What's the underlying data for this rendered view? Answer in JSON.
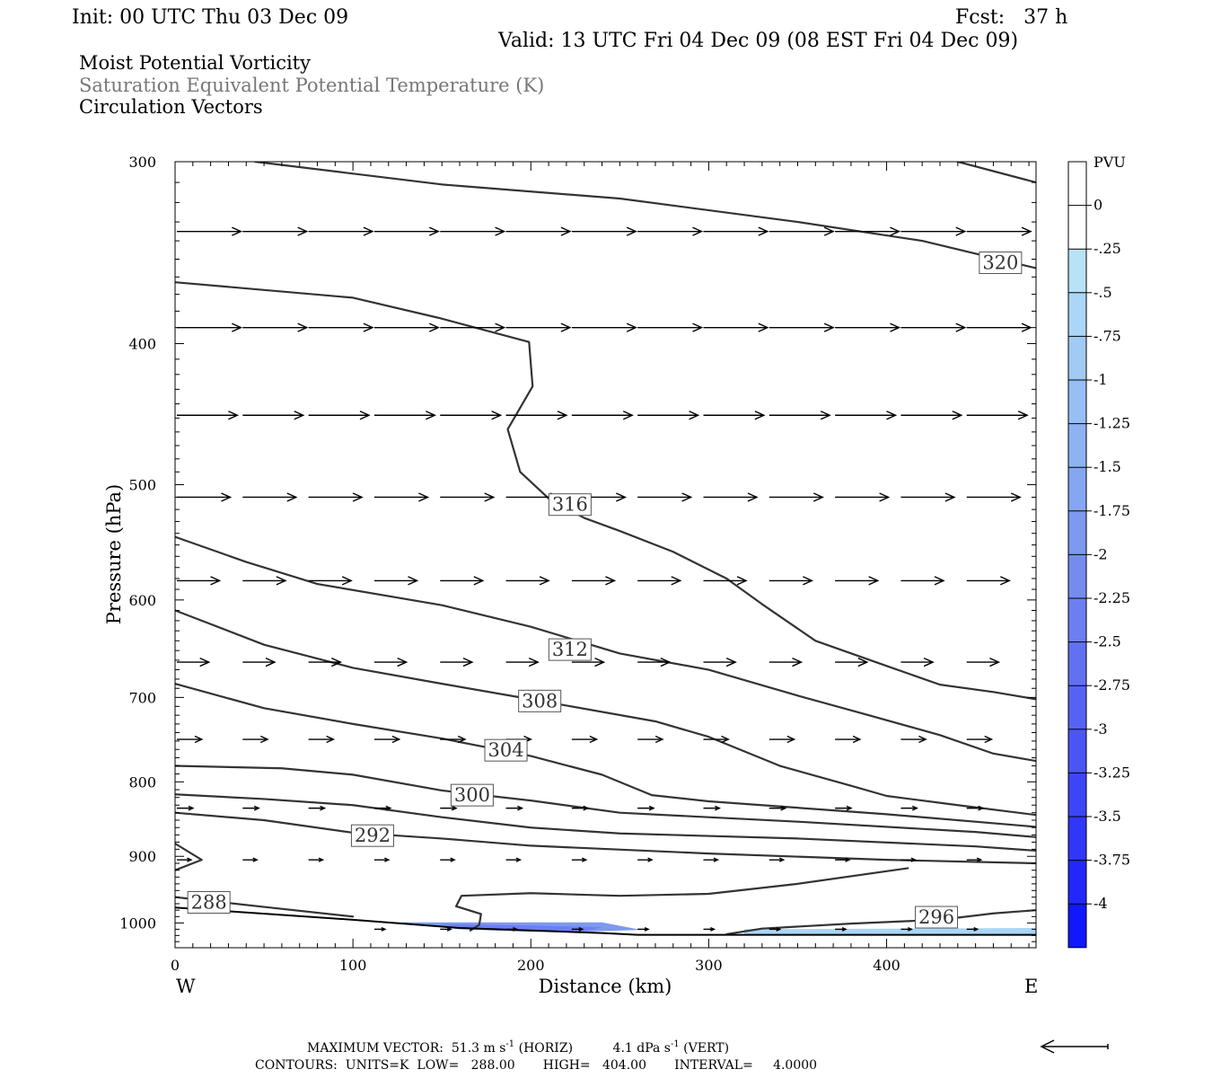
{
  "header": {
    "init": "Init: 00 UTC Thu 03 Dec 09",
    "fcst": "Fcst:   37 h",
    "valid": "Valid: 13 UTC Fri 04 Dec 09 (08 EST Fri 04 Dec 09)",
    "fields": [
      "Moist Potential Vorticity",
      "Saturation Equivalent Potential Temperature (K)",
      "Circulation Vectors"
    ]
  },
  "footer": {
    "line1_prefix": "MAXIMUM VECTOR:  51.3 m s",
    "line1_mid": " (HORIZ)          4.1 dPa s",
    "line1_suffix": " (VERT)",
    "sup": "-1",
    "line2": "CONTOURS:  UNITS=K  LOW=   288.00       HIGH=   404.00       INTERVAL=     4.0000"
  },
  "chart_data": {
    "type": "line",
    "xlabel": "Distance (km)",
    "ylabel": "Pressure (hPa)",
    "xlim": [
      0,
      484
    ],
    "ylim": [
      1040,
      300
    ],
    "y_log": true,
    "x_ticks": [
      0,
      100,
      200,
      300,
      400
    ],
    "y_ticks": [
      300,
      400,
      500,
      600,
      700,
      800,
      900,
      1000
    ],
    "direction_labels": {
      "left": "W",
      "right": "E"
    },
    "colorbar": {
      "unit": "PVU",
      "labels": [
        "0",
        "-.25",
        "-.5",
        "-.75",
        "-1",
        "-1.25",
        "-1.5",
        "-1.75",
        "-2",
        "-2.25",
        "-2.5",
        "-2.75",
        "-3",
        "-3.25",
        "-3.5",
        "-3.75",
        "-4"
      ],
      "colors": [
        "#ffffff",
        "#ffffff",
        "#b8e2f6",
        "#abd6f5",
        "#9fcbf4",
        "#96bff3",
        "#8db3f2",
        "#85a6f1",
        "#7d99f0",
        "#758cef",
        "#6d7ff0",
        "#6271f1",
        "#5663f2",
        "#4a55f4",
        "#3d46f6",
        "#3037f8",
        "#2228fb",
        "#1018fd"
      ]
    },
    "surface": [
      [
        0,
        976
      ],
      [
        100,
        995
      ],
      [
        160,
        1008
      ],
      [
        240,
        1016
      ],
      [
        260,
        1019
      ],
      [
        300,
        1019
      ],
      [
        484,
        1019
      ]
    ],
    "contours": [
      {
        "label": "320",
        "label_at": [
          464,
          352
        ],
        "points": [
          [
            45,
            300
          ],
          [
            150,
            311
          ],
          [
            250,
            318
          ],
          [
            350,
            330
          ],
          [
            420,
            340
          ],
          [
            484,
            355
          ]
        ]
      },
      {
        "label": "",
        "points": [
          [
            440,
            300
          ],
          [
            484,
            310
          ]
        ]
      },
      {
        "label": "316",
        "label_at": [
          222,
          516
        ],
        "points": [
          [
            0,
            363
          ],
          [
            100,
            372
          ],
          [
            148,
            384
          ],
          [
            199,
            399
          ],
          [
            201,
            428
          ],
          [
            187,
            458
          ],
          [
            194,
            490
          ],
          [
            210,
            511
          ],
          [
            230,
            527
          ],
          [
            250,
            538
          ],
          [
            280,
            556
          ],
          [
            310,
            580
          ],
          [
            330,
            604
          ],
          [
            360,
            640
          ],
          [
            400,
            666
          ],
          [
            430,
            686
          ],
          [
            460,
            694
          ],
          [
            484,
            702
          ]
        ]
      },
      {
        "label": "312",
        "label_at": [
          222,
          649
        ],
        "points": [
          [
            0,
            543
          ],
          [
            40,
            565
          ],
          [
            80,
            585
          ],
          [
            150,
            605
          ],
          [
            200,
            626
          ],
          [
            250,
            653
          ],
          [
            300,
            670
          ],
          [
            350,
            698
          ],
          [
            390,
            720
          ],
          [
            430,
            743
          ],
          [
            460,
            765
          ],
          [
            484,
            774
          ]
        ]
      },
      {
        "label": "308",
        "label_at": [
          205,
          704
        ],
        "points": [
          [
            0,
            610
          ],
          [
            50,
            644
          ],
          [
            100,
            668
          ],
          [
            150,
            685
          ],
          [
            200,
            702
          ],
          [
            270,
            727
          ],
          [
            300,
            745
          ],
          [
            340,
            780
          ],
          [
            380,
            805
          ],
          [
            400,
            818
          ],
          [
            440,
            830
          ],
          [
            484,
            843
          ]
        ]
      },
      {
        "label": "304",
        "label_at": [
          186,
          761
        ],
        "points": [
          [
            0,
            685
          ],
          [
            50,
            712
          ],
          [
            100,
            730
          ],
          [
            150,
            747
          ],
          [
            200,
            768
          ],
          [
            240,
            791
          ],
          [
            268,
            817
          ],
          [
            300,
            825
          ],
          [
            400,
            842
          ],
          [
            484,
            859
          ]
        ]
      },
      {
        "label": "300",
        "label_at": [
          167,
          817
        ],
        "points": [
          [
            0,
            780
          ],
          [
            60,
            783
          ],
          [
            100,
            791
          ],
          [
            150,
            811
          ],
          [
            200,
            824
          ],
          [
            250,
            840
          ],
          [
            350,
            852
          ],
          [
            450,
            866
          ],
          [
            484,
            873
          ]
        ]
      },
      {
        "label": "292",
        "label_at": [
          111,
          871
        ],
        "points": [
          [
            0,
            840
          ],
          [
            50,
            850
          ],
          [
            100,
            867
          ],
          [
            150,
            875
          ],
          [
            200,
            885
          ],
          [
            300,
            896
          ],
          [
            400,
            905
          ],
          [
            484,
            910
          ]
        ]
      },
      {
        "label": "",
        "points": [
          [
            0,
            816
          ],
          [
            50,
            822
          ],
          [
            100,
            830
          ],
          [
            150,
            846
          ],
          [
            200,
            860
          ],
          [
            250,
            868
          ],
          [
            350,
            875
          ],
          [
            450,
            886
          ],
          [
            484,
            892
          ]
        ]
      },
      {
        "label": "",
        "points": [
          [
            0,
            882
          ],
          [
            15,
            905
          ],
          [
            0,
            920
          ]
        ]
      },
      {
        "label": "",
        "points": [
          [
            412,
            917
          ],
          [
            350,
            940
          ],
          [
            300,
            955
          ],
          [
            250,
            958
          ],
          [
            200,
            954
          ],
          [
            161,
            958
          ],
          [
            158,
            974
          ],
          [
            172,
            986
          ],
          [
            171,
            1003
          ],
          [
            166,
            1012
          ]
        ]
      },
      {
        "label": "288",
        "label_at": [
          19,
          968
        ],
        "points": [
          [
            0,
            960
          ],
          [
            50,
            975
          ],
          [
            100,
            990
          ]
        ]
      },
      {
        "label": "296",
        "label_at": [
          428,
          991
        ],
        "points": [
          [
            310,
            1018
          ],
          [
            330,
            1009
          ],
          [
            380,
            1001
          ],
          [
            430,
            995
          ],
          [
            460,
            985
          ],
          [
            484,
            980
          ]
        ]
      }
    ],
    "pv_shading": [
      {
        "level": -1.75,
        "points": [
          [
            124,
            999
          ],
          [
            240,
            999
          ],
          [
            262,
            1011
          ],
          [
            230,
            1014
          ],
          [
            200,
            1014
          ],
          [
            160,
            1010
          ],
          [
            124,
            999
          ]
        ]
      },
      {
        "level": -2.25,
        "points": [
          [
            150,
            1002
          ],
          [
            200,
            1004
          ],
          [
            240,
            1007
          ],
          [
            232,
            1012
          ],
          [
            200,
            1013
          ],
          [
            165,
            1009
          ],
          [
            150,
            1002
          ]
        ]
      },
      {
        "level": -0.5,
        "points": [
          [
            320,
            1010
          ],
          [
            480,
            1008
          ],
          [
            484,
            1008
          ],
          [
            484,
            1019
          ],
          [
            320,
            1019
          ],
          [
            320,
            1010
          ]
        ]
      }
    ],
    "vector_rows": [
      {
        "p": 335,
        "len": 36,
        "xs": [
          0,
          37,
          74,
          111,
          148,
          185,
          222,
          259,
          296,
          333,
          370,
          407,
          444
        ]
      },
      {
        "p": 390,
        "len": 36,
        "xs": [
          0,
          37,
          74,
          111,
          148,
          185,
          222,
          259,
          296,
          333,
          370,
          407,
          444
        ]
      },
      {
        "p": 448,
        "len": 34,
        "xs": [
          0,
          37,
          74,
          111,
          148,
          185,
          222,
          259,
          296,
          333,
          370,
          407,
          444
        ]
      },
      {
        "p": 510,
        "len": 30,
        "xs": [
          0,
          37,
          74,
          111,
          148,
          185,
          222,
          259,
          296,
          333,
          370,
          407,
          444
        ]
      },
      {
        "p": 582,
        "len": 24,
        "xs": [
          0,
          37,
          74,
          111,
          148,
          185,
          222,
          259,
          296,
          333,
          370,
          407,
          444
        ]
      },
      {
        "p": 662,
        "len": 18,
        "xs": [
          0,
          37,
          74,
          111,
          148,
          185,
          222,
          259,
          296,
          333,
          370,
          407,
          444
        ]
      },
      {
        "p": 748,
        "len": 14,
        "xs": [
          0,
          37,
          74,
          111,
          148,
          185,
          222,
          259,
          296,
          333,
          370,
          407,
          444
        ]
      },
      {
        "p": 834,
        "len": 9,
        "xs": [
          0,
          37,
          74,
          111,
          148,
          185,
          222,
          259,
          296,
          333,
          370,
          407,
          444
        ]
      },
      {
        "p": 905,
        "len": 8,
        "xs": [
          0,
          37,
          74,
          111,
          148,
          185,
          222,
          259,
          296,
          333,
          370,
          407,
          444
        ]
      },
      {
        "p": 1010,
        "len": 6,
        "xs": [
          111,
          148,
          185,
          222,
          259,
          296,
          333,
          370,
          407,
          444
        ]
      }
    ]
  }
}
